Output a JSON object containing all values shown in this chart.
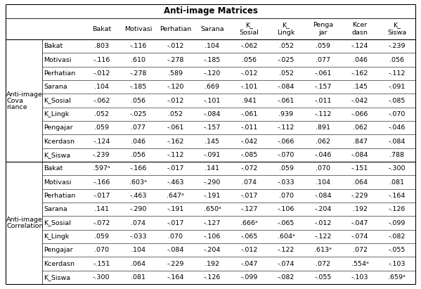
{
  "title": "Anti-image Matrices",
  "col_headers": [
    "Bakat",
    "Motivasi",
    "Perhatian",
    "Sarana",
    "K_\nSosial",
    "K_\nLingk",
    "Penga\njar",
    "Kcer\ndasn",
    "K_\nSiswa"
  ],
  "section1_label_lines": [
    "Anti-image",
    "Cova",
    "riance"
  ],
  "section2_label_lines": [
    "Anti-image",
    "Correlation"
  ],
  "row_labels_s1": [
    "Bakat",
    "Motivasi",
    "Perhatian",
    "Sarana",
    "K_Sosial",
    "K_Lingk",
    "Pengajar",
    "Kcerdasn",
    "K_Siswa"
  ],
  "row_labels_s2": [
    "Bakat",
    "Motivasi",
    "Perhatian",
    "Sarana",
    "K_Sosial",
    "K_Lingk",
    "Pengajar",
    "Kcerdasn",
    "K_Siswa"
  ],
  "data_s1": [
    [
      ".803",
      "-.116",
      "-.012",
      ".104",
      "-.062",
      ".052",
      ".059",
      "-.124",
      "-.239"
    ],
    [
      "-.116",
      ".610",
      "-.278",
      "-.185",
      ".056",
      "-.025",
      ".077",
      ".046",
      ".056"
    ],
    [
      "-.012",
      "-.278",
      ".589",
      "-.120",
      "-.012",
      ".052",
      "-.061",
      "-.162",
      "-.112"
    ],
    [
      ".104",
      "-.185",
      "-.120",
      ".669",
      "-.101",
      "-.084",
      "-.157",
      ".145",
      "-.091"
    ],
    [
      "-.062",
      ".056",
      "-.012",
      "-.101",
      ".941",
      "-.061",
      "-.011",
      "-.042",
      "-.085"
    ],
    [
      ".052",
      "-.025",
      ".052",
      "-.084",
      "-.061",
      ".939",
      "-.112",
      "-.066",
      "-.070"
    ],
    [
      ".059",
      ".077",
      "-.061",
      "-.157",
      "-.011",
      "-.112",
      ".891",
      ".062",
      "-.046"
    ],
    [
      "-.124",
      ".046",
      "-.162",
      ".145",
      "-.042",
      "-.066",
      ".062",
      ".847",
      "-.084"
    ],
    [
      "-.239",
      ".056",
      "-.112",
      "-.091",
      "-.085",
      "-.070",
      "-.046",
      "-.084",
      ".788"
    ]
  ],
  "data_s2": [
    [
      ".597ᵃ",
      "-.166",
      "-.017",
      ".141",
      "-.072",
      ".059",
      ".070",
      "-.151",
      "-.300"
    ],
    [
      "-.166",
      ".603ᵃ",
      "-.463",
      "-.290",
      ".074",
      "-.033",
      ".104",
      ".064",
      ".081"
    ],
    [
      "-.017",
      "-.463",
      ".647ᵃ",
      "-.191",
      "-.017",
      ".070",
      "-.084",
      "-.229",
      "-.164"
    ],
    [
      ".141",
      "-.290",
      "-.191",
      ".650ᵃ",
      "-.127",
      "-.106",
      "-.204",
      ".192",
      "-.126"
    ],
    [
      "-.072",
      ".074",
      "-.017",
      "-.127",
      ".666ᵃ",
      "-.065",
      "-.012",
      "-.047",
      "-.099"
    ],
    [
      ".059",
      "-.033",
      ".070",
      "-.106",
      "-.065",
      ".604ᵃ",
      "-.122",
      "-.074",
      "-.082"
    ],
    [
      ".070",
      ".104",
      "-.084",
      "-.204",
      "-.012",
      "-.122",
      ".613ᵃ",
      ".072",
      "-.055"
    ],
    [
      "-.151",
      ".064",
      "-.229",
      ".192",
      "-.047",
      "-.074",
      ".072",
      ".554ᵃ",
      "-.103"
    ],
    [
      "-.300",
      ".081",
      "-.164",
      "-.126",
      "-.099",
      "-.082",
      "-.055",
      "-.103",
      ".659ᵃ"
    ]
  ],
  "font_size": 6.8,
  "title_font_size": 8.5,
  "bg_color": "#ffffff"
}
